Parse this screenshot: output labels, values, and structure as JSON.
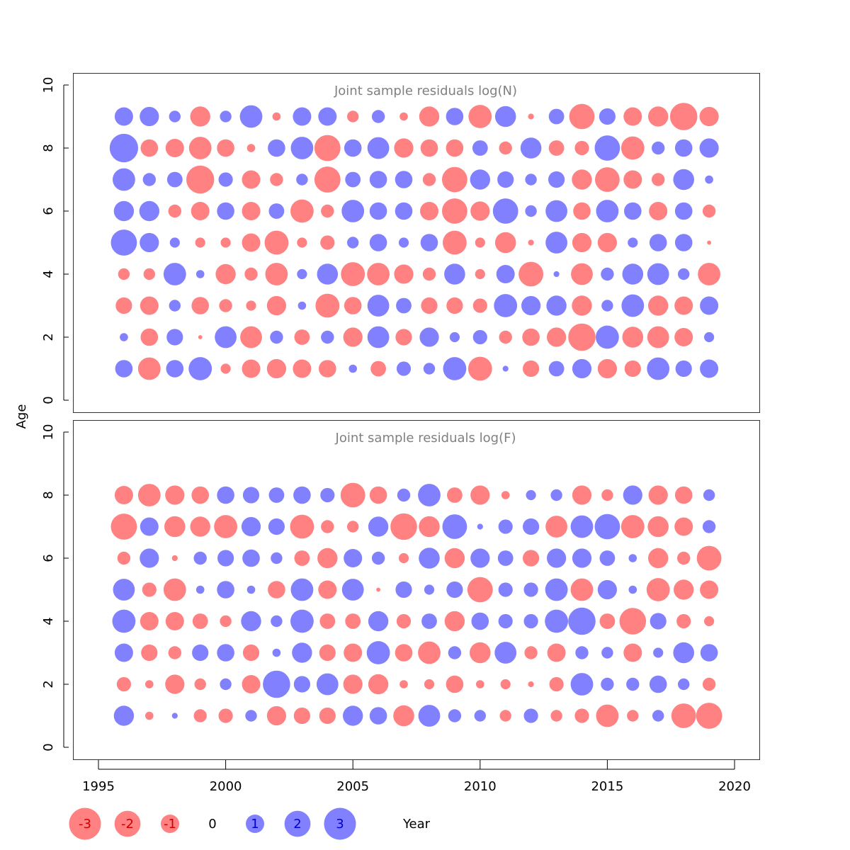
{
  "chart_data": [
    {
      "type": "scatter",
      "title": "Joint sample residuals log(N)",
      "xlabel": "",
      "ylabel": "Age",
      "xlim": [
        1994,
        2021
      ],
      "ylim": [
        0,
        10
      ],
      "x_ticks": [
        1995,
        2000,
        2005,
        2010,
        2015,
        2020
      ],
      "y_ticks": [
        0,
        2,
        4,
        6,
        8,
        10
      ],
      "grid": false,
      "years": [
        1996,
        1997,
        1998,
        1999,
        2000,
        2001,
        2002,
        2003,
        2004,
        2005,
        2006,
        2007,
        2008,
        2009,
        2010,
        2011,
        2012,
        2013,
        2014,
        2015,
        2016,
        2017,
        2018,
        2019
      ],
      "ages": [
        1,
        2,
        3,
        4,
        5,
        6,
        7,
        8,
        9
      ],
      "residuals": {
        "9": [
          1.0,
          1.1,
          0.4,
          -1.2,
          0.4,
          1.5,
          -0.2,
          1.0,
          1.0,
          -0.4,
          0.5,
          -0.2,
          -1.2,
          0.9,
          -1.6,
          1.3,
          -0.1,
          0.7,
          -1.9,
          0.8,
          -1.0,
          -1.2,
          -2.2,
          -1.1
        ],
        "8": [
          2.4,
          -0.9,
          -1.0,
          -1.5,
          -0.9,
          -0.2,
          0.9,
          1.5,
          -2.0,
          0.9,
          1.4,
          -1.1,
          -0.9,
          -0.9,
          0.7,
          -0.5,
          1.3,
          -0.7,
          -0.6,
          1.9,
          -1.6,
          0.5,
          0.9,
          1.1
        ],
        "7": [
          1.5,
          0.5,
          0.7,
          -2.3,
          0.6,
          -1.0,
          -0.5,
          0.4,
          -2.0,
          0.7,
          0.9,
          0.9,
          -0.5,
          -1.9,
          1.2,
          0.8,
          0.4,
          0.8,
          -1.2,
          -1.8,
          -1.0,
          -0.5,
          1.3,
          0.2
        ],
        "6": [
          1.2,
          1.2,
          -0.5,
          -1.0,
          0.9,
          -1.0,
          0.7,
          -1.6,
          -0.5,
          1.5,
          0.9,
          0.9,
          -1.0,
          -1.9,
          -1.1,
          1.9,
          0.4,
          1.4,
          -0.9,
          1.5,
          0.9,
          -1.0,
          0.9,
          -0.5
        ],
        "5": [
          2.0,
          1.1,
          0.3,
          -0.3,
          -0.3,
          -1.0,
          -1.7,
          -0.3,
          -0.6,
          0.4,
          0.9,
          0.3,
          0.9,
          -1.7,
          -0.3,
          -1.3,
          -0.1,
          1.4,
          -1.1,
          -1.1,
          0.3,
          0.9,
          0.9,
          -0.05
        ],
        "4": [
          -0.4,
          -0.4,
          1.5,
          0.2,
          -1.2,
          -0.5,
          -1.5,
          0.3,
          1.3,
          -1.7,
          -1.5,
          -1.1,
          -0.5,
          1.3,
          -0.3,
          1.0,
          -1.8,
          0.1,
          -1.4,
          0.5,
          1.3,
          1.4,
          0.4,
          -1.5
        ],
        "3": [
          -0.8,
          -1.0,
          0.4,
          -0.9,
          -0.5,
          -0.3,
          -1.1,
          0.2,
          -1.7,
          -0.9,
          1.4,
          0.7,
          -0.8,
          -0.8,
          -0.6,
          1.6,
          1.1,
          1.2,
          -1.2,
          0.4,
          1.5,
          -1.2,
          -1.0,
          1.0
        ],
        "2": [
          0.2,
          -0.9,
          0.8,
          -0.05,
          1.4,
          -1.4,
          0.5,
          -0.7,
          0.5,
          -1.1,
          1.4,
          -0.8,
          1.1,
          0.3,
          0.6,
          -0.5,
          -0.9,
          -1.1,
          -2.2,
          1.6,
          -1.3,
          -1.4,
          -1.0,
          0.3
        ],
        "1": [
          0.9,
          -1.5,
          0.9,
          1.6,
          -0.3,
          -1.0,
          -1.1,
          -1.0,
          -0.9,
          0.2,
          -0.7,
          0.6,
          0.4,
          1.6,
          -1.7,
          0.1,
          -0.8,
          0.7,
          1.1,
          -1.1,
          -0.8,
          1.5,
          0.8,
          1.0
        ]
      }
    },
    {
      "type": "scatter",
      "title": "Joint sample residuals log(F)",
      "xlabel": "Year",
      "ylabel": "Age",
      "xlim": [
        1994,
        2021
      ],
      "ylim": [
        0,
        10
      ],
      "x_ticks": [
        1995,
        2000,
        2005,
        2010,
        2015,
        2020
      ],
      "y_ticks": [
        0,
        2,
        4,
        6,
        8,
        10
      ],
      "grid": false,
      "years": [
        1996,
        1997,
        1998,
        1999,
        2000,
        2001,
        2002,
        2003,
        2004,
        2005,
        2006,
        2007,
        2008,
        2009,
        2010,
        2011,
        2012,
        2013,
        2014,
        2015,
        2016,
        2017,
        2018,
        2019
      ],
      "ages": [
        1,
        2,
        3,
        4,
        5,
        6,
        7,
        8
      ],
      "residuals": {
        "8": [
          -1.0,
          -1.5,
          -1.1,
          -0.9,
          0.9,
          0.8,
          0.7,
          0.9,
          0.6,
          -1.8,
          -0.9,
          0.5,
          1.5,
          -0.7,
          -1.1,
          -0.2,
          0.3,
          0.4,
          -1.1,
          -0.4,
          1.1,
          -1.1,
          -0.9,
          0.4
        ],
        "7": [
          -2.0,
          1.0,
          -1.3,
          -1.2,
          -1.6,
          1.1,
          0.8,
          -1.7,
          -0.5,
          -0.4,
          1.2,
          -2.1,
          -1.3,
          1.8,
          0.1,
          0.6,
          0.8,
          -1.4,
          1.5,
          1.9,
          -1.6,
          -1.3,
          -1.0,
          0.5
        ],
        "6": [
          -0.5,
          1.1,
          -0.1,
          0.5,
          0.8,
          0.9,
          0.4,
          -0.7,
          -1.2,
          1.0,
          0.5,
          -0.3,
          1.3,
          -1.2,
          1.1,
          0.7,
          -0.8,
          1.1,
          1.1,
          0.7,
          0.2,
          -1.2,
          -0.5,
          -1.8
        ],
        "5": [
          1.4,
          -0.6,
          -1.5,
          0.2,
          0.9,
          0.2,
          -0.9,
          1.5,
          -1.0,
          1.4,
          -0.05,
          0.8,
          0.3,
          0.8,
          -1.9,
          0.6,
          0.6,
          1.5,
          -1.5,
          1.1,
          0.2,
          -1.6,
          -1.2,
          -1.0
        ],
        "4": [
          1.6,
          -1.0,
          -1.0,
          -0.7,
          -0.4,
          1.2,
          0.4,
          1.6,
          -0.7,
          -0.7,
          1.2,
          -0.6,
          0.7,
          -1.2,
          0.9,
          0.6,
          0.6,
          1.6,
          2.2,
          -0.7,
          -2.1,
          0.8,
          -0.6,
          -0.3
        ],
        "3": [
          1.0,
          -0.8,
          -0.5,
          0.8,
          0.9,
          -0.8,
          0.2,
          1.2,
          -0.8,
          -1.0,
          1.6,
          -0.9,
          -1.5,
          0.5,
          -1.3,
          1.4,
          -0.5,
          -1.0,
          0.5,
          0.4,
          -1.0,
          0.3,
          1.3,
          0.9
        ],
        "2": [
          -0.6,
          -0.2,
          -1.1,
          -0.4,
          0.4,
          -1.0,
          2.2,
          0.8,
          1.4,
          -1.1,
          -1.2,
          -0.2,
          -0.3,
          -0.9,
          -0.2,
          -0.3,
          -0.1,
          -0.6,
          1.5,
          0.5,
          0.5,
          0.9,
          0.4,
          -0.5
        ],
        "1": [
          1.2,
          -0.2,
          0.1,
          -0.5,
          -0.6,
          0.4,
          -1.1,
          -0.8,
          -0.8,
          1.2,
          0.9,
          -1.3,
          1.4,
          0.5,
          0.4,
          -0.4,
          0.6,
          -0.4,
          -0.6,
          -1.5,
          -0.4,
          0.4,
          -1.8,
          -2.0
        ]
      }
    }
  ],
  "legend": {
    "placement": "bottom",
    "entries": [
      "-3",
      "-2",
      "-1",
      "0",
      "1",
      "2",
      "3"
    ],
    "values": [
      -3,
      -2,
      -1,
      0,
      1,
      2,
      3
    ]
  },
  "xaxis_label": "Year",
  "yaxis_label": "Age",
  "colors": {
    "negative": "#ff6b6b",
    "positive": "#6b6bff",
    "negative_text": "#cc0000",
    "positive_text": "#0000cc",
    "title": "#808080"
  }
}
